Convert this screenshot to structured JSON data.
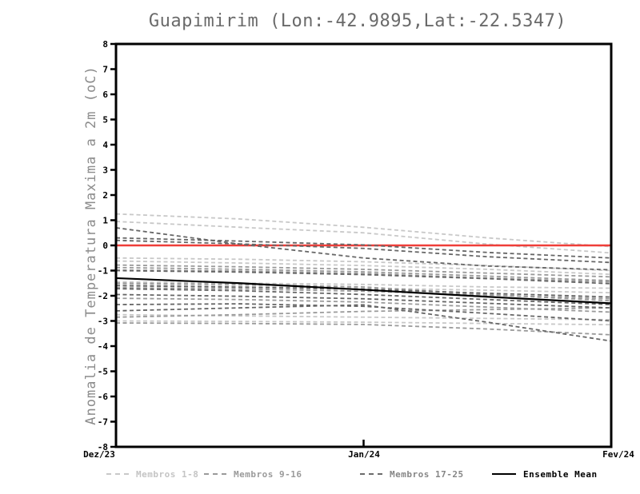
{
  "title": "Guapimirim (Lon:-42.9895,Lat:-22.5347)",
  "y_axis": {
    "label": "Anomalia de Temperatura Maxima a 2m (oC)",
    "min": -8,
    "max": 8,
    "tick_step": 1
  },
  "x_axis": {
    "ticks": [
      {
        "label": "Dez/23",
        "t": 0
      },
      {
        "label": "Jan/24",
        "t": 0.5
      },
      {
        "label": "Fev/24",
        "t": 1
      }
    ]
  },
  "legend": [
    {
      "label": "Membros 1-8",
      "style": "dashed",
      "line_color": "#c8c8c8",
      "text_color": "#c4c4c4"
    },
    {
      "label": "Membros 9-16",
      "style": "dashed",
      "line_color": "#9a9a9a",
      "text_color": "#9a9a9a"
    },
    {
      "label": "Membros 17-25",
      "style": "dashed",
      "line_color": "#6b6b6b",
      "text_color": "#868686"
    },
    {
      "label": "Ensemble Mean",
      "style": "solid",
      "line_color": "#000000",
      "text_color": "#000000"
    }
  ],
  "colors": {
    "zero_line": "#ef3e39",
    "mean_line": "#000000",
    "axis": "#000000",
    "title_text": "#6a6a6a",
    "ylabel_text": "#8c8c8c",
    "group_1_8": "#c8c8c8",
    "group_9_16": "#9a9a9a",
    "group_17_25": "#666666"
  },
  "chart_data": {
    "type": "line",
    "title": "Guapimirim (Lon:-42.9895,Lat:-22.5347)",
    "ylabel": "Anomalia de Temperatura Maxima a 2m (oC)",
    "ylim": [
      -8,
      8
    ],
    "y_tick_step": 1,
    "x_tick_labels": [
      "Dez/23",
      "Jan/24",
      "Fev/24"
    ],
    "x_stations": [
      0,
      0.25,
      0.5,
      0.75,
      1
    ],
    "grid": false,
    "legend_position": "bottom",
    "zero_line_value": 0,
    "ensemble_mean": {
      "name": "Ensemble Mean",
      "values": [
        -1.3,
        -1.5,
        -1.76,
        -2.04,
        -2.3
      ]
    },
    "members": [
      {
        "name": "Membro 1",
        "group": "1-8",
        "values": [
          1.25,
          1.05,
          0.72,
          0.3,
          -0.05
        ]
      },
      {
        "name": "Membro 2",
        "group": "1-8",
        "values": [
          0.95,
          0.72,
          0.5,
          0.05,
          -0.3
        ]
      },
      {
        "name": "Membro 3",
        "group": "1-8",
        "values": [
          -0.5,
          -0.55,
          -0.65,
          -0.8,
          -1.0
        ]
      },
      {
        "name": "Membro 4",
        "group": "1-8",
        "values": [
          -0.62,
          -0.7,
          -0.8,
          -0.95,
          -1.15
        ]
      },
      {
        "name": "Membro 5",
        "group": "1-8",
        "values": [
          -1.45,
          -1.5,
          -1.55,
          -1.65,
          -1.7
        ]
      },
      {
        "name": "Membro 6",
        "group": "1-8",
        "values": [
          -1.55,
          -1.62,
          -1.7,
          -1.78,
          -1.88
        ]
      },
      {
        "name": "Membro 7",
        "group": "1-8",
        "values": [
          -2.75,
          -2.8,
          -2.85,
          -2.9,
          -2.95
        ]
      },
      {
        "name": "Membro 8",
        "group": "1-8",
        "values": [
          -3.0,
          -3.02,
          -3.05,
          -3.1,
          -3.15
        ]
      },
      {
        "name": "Membro 9",
        "group": "9-16",
        "values": [
          -0.78,
          -0.85,
          -0.95,
          -1.1,
          -1.25
        ]
      },
      {
        "name": "Membro 10",
        "group": "9-16",
        "values": [
          -0.88,
          -0.95,
          -1.05,
          -1.22,
          -1.4
        ]
      },
      {
        "name": "Membro 11",
        "group": "9-16",
        "values": [
          -0.98,
          -1.02,
          -1.12,
          -1.3,
          -1.45
        ]
      },
      {
        "name": "Membro 12",
        "group": "9-16",
        "values": [
          -1.5,
          -1.55,
          -1.65,
          -1.95,
          -2.2
        ]
      },
      {
        "name": "Membro 13",
        "group": "9-16",
        "values": [
          -1.68,
          -1.73,
          -1.82,
          -1.97,
          -2.12
        ]
      },
      {
        "name": "Membro 14",
        "group": "9-16",
        "values": [
          -2.1,
          -2.15,
          -2.25,
          -2.45,
          -2.65
        ]
      },
      {
        "name": "Membro 15",
        "group": "9-16",
        "values": [
          -2.85,
          -2.75,
          -2.62,
          -2.55,
          -2.48
        ]
      },
      {
        "name": "Membro 16",
        "group": "9-16",
        "values": [
          -3.08,
          -3.1,
          -3.14,
          -3.32,
          -3.55
        ]
      },
      {
        "name": "Membro 17",
        "group": "17-25",
        "values": [
          0.7,
          0.05,
          -0.5,
          -0.82,
          -0.97
        ]
      },
      {
        "name": "Membro 18",
        "group": "17-25",
        "values": [
          0.3,
          0.17,
          0.02,
          -0.28,
          -0.5
        ]
      },
      {
        "name": "Membro 19",
        "group": "17-25",
        "values": [
          0.2,
          0.06,
          -0.12,
          -0.45,
          -0.68
        ]
      },
      {
        "name": "Membro 20",
        "group": "17-25",
        "values": [
          -1.0,
          -1.06,
          -1.16,
          -1.32,
          -1.52
        ]
      },
      {
        "name": "Membro 21",
        "group": "17-25",
        "values": [
          -1.6,
          -1.66,
          -1.74,
          -1.9,
          -2.05
        ]
      },
      {
        "name": "Membro 22",
        "group": "17-25",
        "values": [
          -1.72,
          -1.8,
          -1.95,
          -2.15,
          -2.35
        ]
      },
      {
        "name": "Membro 23",
        "group": "17-25",
        "values": [
          -1.95,
          -2.02,
          -2.12,
          -2.3,
          -2.48
        ]
      },
      {
        "name": "Membro 24",
        "group": "17-25",
        "values": [
          -2.35,
          -2.32,
          -2.42,
          -2.7,
          -3.0
        ]
      },
      {
        "name": "Membro 25",
        "group": "17-25",
        "values": [
          -2.6,
          -2.48,
          -2.36,
          -3.05,
          -3.8
        ]
      }
    ]
  }
}
